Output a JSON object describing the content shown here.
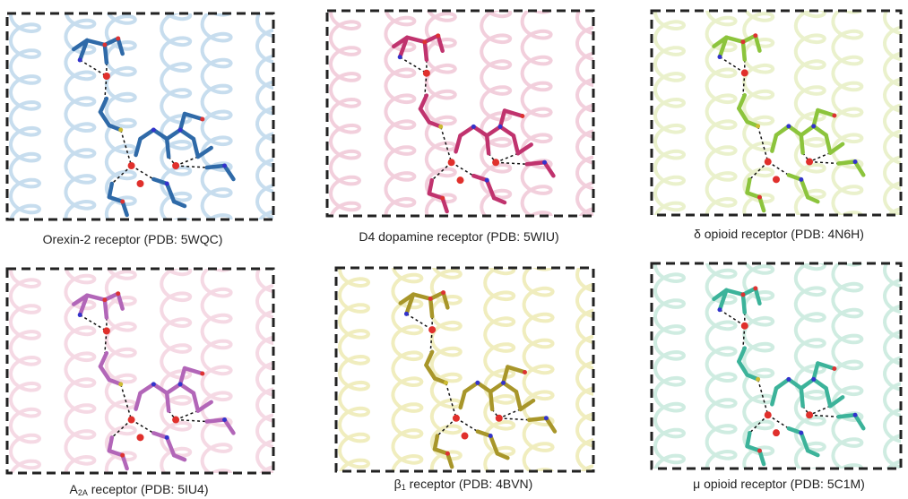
{
  "panels": [
    {
      "caption": {
        "main": "Orexin-2 receptor (PDB: 5WQC)"
      }
    },
    {
      "caption": {
        "main": "D4 dopamine receptor (PDB: 5WIU)"
      }
    },
    {
      "caption": {
        "main": "δ opioid receptor (PDB: 4N6H)"
      }
    },
    {
      "caption": {
        "main": "A",
        "sub": "2A",
        "rest": " receptor (PDB: 5IU4)"
      }
    },
    {
      "caption": {
        "main": "β",
        "sub": "1",
        "rest": " receptor (PDB: 4BVN)"
      }
    },
    {
      "caption": {
        "main": "μ opioid receptor (PDB: 5C1M)"
      }
    }
  ]
}
